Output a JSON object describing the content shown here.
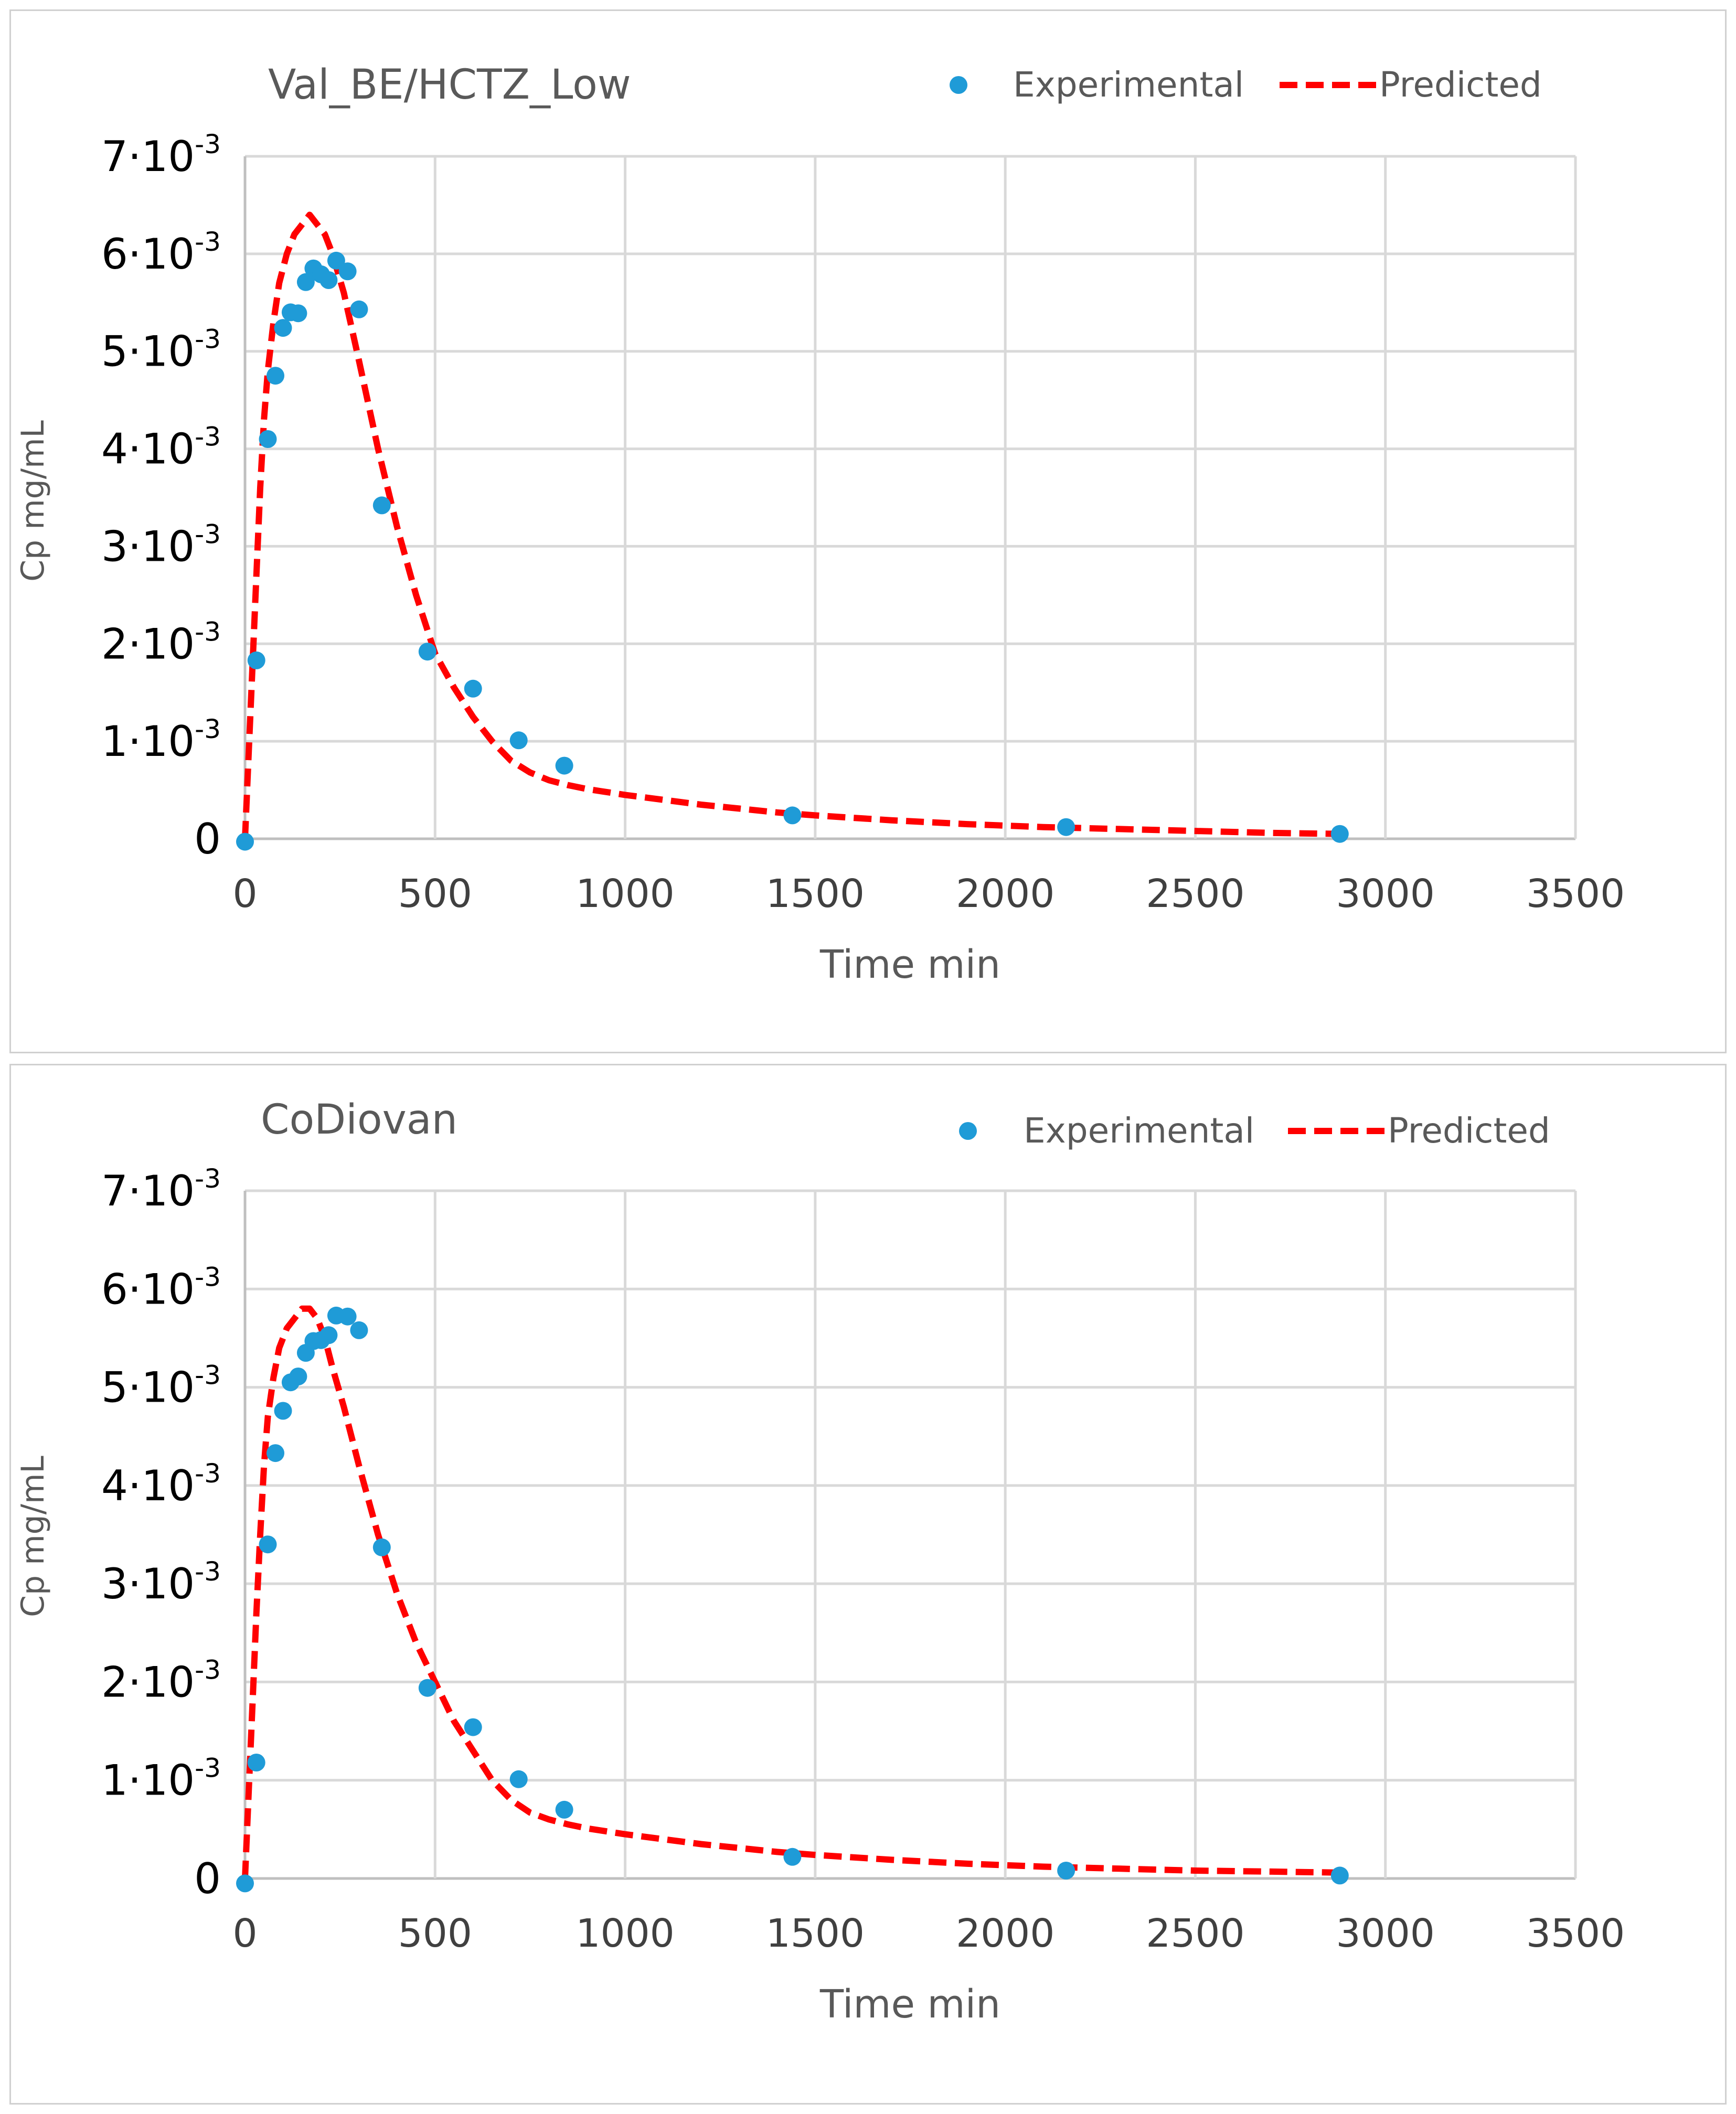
{
  "chart_data": [
    {
      "type": "scatter",
      "title": "Val_BE/HCTZ_Low",
      "xlabel": "Time min",
      "ylabel": "Cp mg/mL",
      "xlim": [
        0,
        3500
      ],
      "ylim": [
        0,
        0.007
      ],
      "x_ticks": [
        "0",
        "500",
        "1000",
        "1500",
        "2000",
        "2500",
        "3000",
        "3500"
      ],
      "y_ticks": [
        {
          "mantissa": "0",
          "exponent": ""
        },
        {
          "mantissa": "1·10",
          "exponent": "-3"
        },
        {
          "mantissa": "2·10",
          "exponent": "-3"
        },
        {
          "mantissa": "3·10",
          "exponent": "-3"
        },
        {
          "mantissa": "4·10",
          "exponent": "-3"
        },
        {
          "mantissa": "5·10",
          "exponent": "-3"
        },
        {
          "mantissa": "6·10",
          "exponent": "-3"
        },
        {
          "mantissa": "7·10",
          "exponent": "-3"
        }
      ],
      "grid": true,
      "legend": "top-right",
      "series": [
        {
          "name": "Experimental",
          "kind": "scatter",
          "color": "#1f9bd7",
          "points": [
            [
              0,
              -3e-05
            ],
            [
              30,
              0.00183
            ],
            [
              60,
              0.0041
            ],
            [
              80,
              0.00475
            ],
            [
              100,
              0.00524
            ],
            [
              120,
              0.0054
            ],
            [
              140,
              0.00539
            ],
            [
              160,
              0.00571
            ],
            [
              180,
              0.00585
            ],
            [
              200,
              0.00579
            ],
            [
              220,
              0.00573
            ],
            [
              240,
              0.00593
            ],
            [
              270,
              0.00582
            ],
            [
              300,
              0.00543
            ],
            [
              360,
              0.00342
            ],
            [
              480,
              0.00192
            ],
            [
              600,
              0.00154
            ],
            [
              720,
              0.00101
            ],
            [
              840,
              0.00075
            ],
            [
              1440,
              0.00024
            ],
            [
              2160,
              0.00012
            ],
            [
              2880,
              5e-05
            ]
          ]
        },
        {
          "name": "Predicted",
          "kind": "line",
          "color": "#ff0000",
          "points": [
            [
              0,
              0.0
            ],
            [
              10,
              0.0009
            ],
            [
              20,
              0.0018
            ],
            [
              30,
              0.0027
            ],
            [
              40,
              0.0036
            ],
            [
              50,
              0.0043
            ],
            [
              60,
              0.0048
            ],
            [
              75,
              0.0053
            ],
            [
              90,
              0.0057
            ],
            [
              110,
              0.006
            ],
            [
              130,
              0.0062
            ],
            [
              150,
              0.0063
            ],
            [
              170,
              0.0064
            ],
            [
              190,
              0.0063
            ],
            [
              210,
              0.0062
            ],
            [
              230,
              0.006
            ],
            [
              260,
              0.0056
            ],
            [
              300,
              0.0049
            ],
            [
              350,
              0.004
            ],
            [
              400,
              0.0032
            ],
            [
              450,
              0.0025
            ],
            [
              500,
              0.0019
            ],
            [
              550,
              0.00155
            ],
            [
              600,
              0.00125
            ],
            [
              650,
              0.001
            ],
            [
              700,
              0.0008
            ],
            [
              750,
              0.00068
            ],
            [
              800,
              0.0006
            ],
            [
              850,
              0.00055
            ],
            [
              900,
              0.00051
            ],
            [
              1000,
              0.00045
            ],
            [
              1100,
              0.0004
            ],
            [
              1200,
              0.00035
            ],
            [
              1300,
              0.00031
            ],
            [
              1400,
              0.00027
            ],
            [
              1500,
              0.00024
            ],
            [
              1700,
              0.00019
            ],
            [
              1900,
              0.00015
            ],
            [
              2100,
              0.00012
            ],
            [
              2300,
              0.0001
            ],
            [
              2500,
              8e-05
            ],
            [
              2700,
              6e-05
            ],
            [
              2880,
              5e-05
            ]
          ]
        }
      ]
    },
    {
      "type": "scatter",
      "title": "CoDiovan",
      "xlabel": "Time min",
      "ylabel": "Cp mg/mL",
      "xlim": [
        0,
        3500
      ],
      "ylim": [
        0,
        0.007
      ],
      "x_ticks": [
        "0",
        "500",
        "1000",
        "1500",
        "2000",
        "2500",
        "3000",
        "3500"
      ],
      "y_ticks": [
        {
          "mantissa": "0",
          "exponent": ""
        },
        {
          "mantissa": "1·10",
          "exponent": "-3"
        },
        {
          "mantissa": "2·10",
          "exponent": "-3"
        },
        {
          "mantissa": "3·10",
          "exponent": "-3"
        },
        {
          "mantissa": "4·10",
          "exponent": "-3"
        },
        {
          "mantissa": "5·10",
          "exponent": "-3"
        },
        {
          "mantissa": "6·10",
          "exponent": "-3"
        },
        {
          "mantissa": "7·10",
          "exponent": "-3"
        }
      ],
      "grid": true,
      "legend": "top-right",
      "series": [
        {
          "name": "Experimental",
          "kind": "scatter",
          "color": "#1f9bd7",
          "points": [
            [
              0,
              -5e-05
            ],
            [
              30,
              0.00118
            ],
            [
              60,
              0.0034
            ],
            [
              80,
              0.00433
            ],
            [
              100,
              0.00476
            ],
            [
              120,
              0.00505
            ],
            [
              140,
              0.00511
            ],
            [
              160,
              0.00535
            ],
            [
              180,
              0.00547
            ],
            [
              200,
              0.00548
            ],
            [
              220,
              0.00553
            ],
            [
              240,
              0.00573
            ],
            [
              270,
              0.00572
            ],
            [
              300,
              0.00558
            ],
            [
              360,
              0.00337
            ],
            [
              480,
              0.00194
            ],
            [
              600,
              0.00154
            ],
            [
              720,
              0.00101
            ],
            [
              840,
              0.0007
            ],
            [
              1440,
              0.00022
            ],
            [
              2160,
              8e-05
            ],
            [
              2880,
              3e-05
            ]
          ]
        },
        {
          "name": "Predicted",
          "kind": "line",
          "color": "#ff0000",
          "points": [
            [
              0,
              0.0
            ],
            [
              10,
              0.0009
            ],
            [
              20,
              0.0018
            ],
            [
              30,
              0.0027
            ],
            [
              40,
              0.0035
            ],
            [
              50,
              0.0042
            ],
            [
              60,
              0.0047
            ],
            [
              75,
              0.0051
            ],
            [
              90,
              0.0054
            ],
            [
              110,
              0.0056
            ],
            [
              130,
              0.0057
            ],
            [
              150,
              0.0058
            ],
            [
              170,
              0.0058
            ],
            [
              190,
              0.0057
            ],
            [
              210,
              0.0055
            ],
            [
              230,
              0.0052
            ],
            [
              260,
              0.0048
            ],
            [
              300,
              0.0042
            ],
            [
              350,
              0.0035
            ],
            [
              400,
              0.0029
            ],
            [
              450,
              0.0024
            ],
            [
              500,
              0.002
            ],
            [
              550,
              0.0016
            ],
            [
              600,
              0.0013
            ],
            [
              650,
              0.001
            ],
            [
              700,
              0.0008
            ],
            [
              750,
              0.00067
            ],
            [
              800,
              0.0006
            ],
            [
              850,
              0.00055
            ],
            [
              900,
              0.00051
            ],
            [
              1000,
              0.00045
            ],
            [
              1100,
              0.0004
            ],
            [
              1200,
              0.00035
            ],
            [
              1300,
              0.00031
            ],
            [
              1400,
              0.00027
            ],
            [
              1500,
              0.00024
            ],
            [
              1700,
              0.00019
            ],
            [
              1900,
              0.00015
            ],
            [
              2100,
              0.00012
            ],
            [
              2300,
              0.0001
            ],
            [
              2500,
              8e-05
            ],
            [
              2700,
              7e-05
            ],
            [
              2880,
              6e-05
            ]
          ]
        }
      ]
    }
  ]
}
